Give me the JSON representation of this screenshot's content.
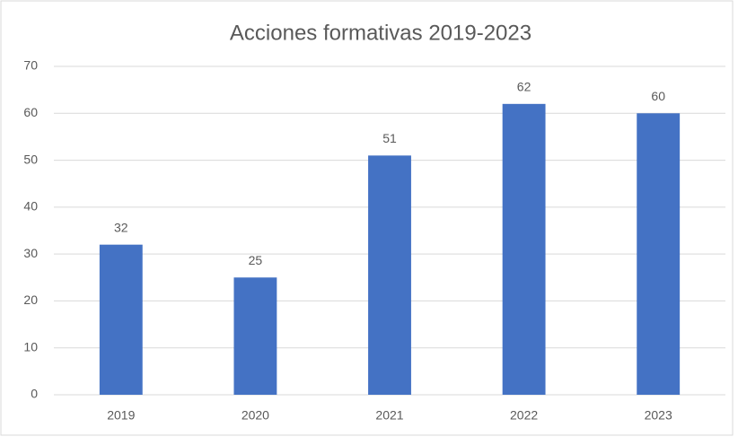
{
  "chart_data": {
    "type": "bar",
    "title": "Acciones formativas 2019-2023",
    "categories": [
      "2019",
      "2020",
      "2021",
      "2022",
      "2023"
    ],
    "values": [
      32,
      25,
      51,
      62,
      60
    ],
    "color": "#4472c4",
    "ylim": [
      0,
      70
    ],
    "yticks": [
      0,
      10,
      20,
      30,
      40,
      50,
      60,
      70
    ],
    "grid": true,
    "data_labels": true
  }
}
